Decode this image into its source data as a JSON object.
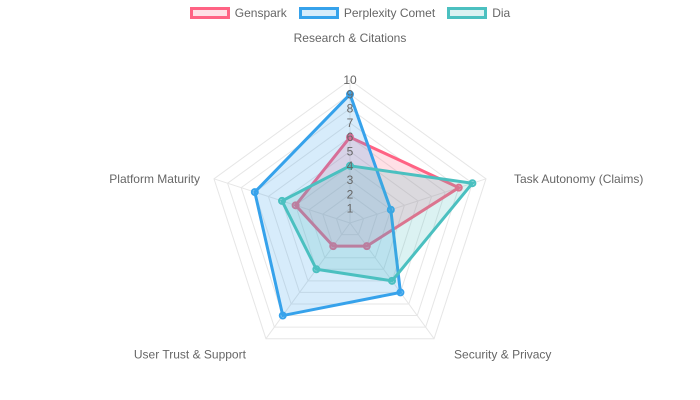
{
  "chart_data": {
    "type": "radar",
    "categories": [
      "Research & Citations",
      "Task Autonomy (Claims)",
      "Security & Privacy",
      "User Trust & Support",
      "Platform Maturity"
    ],
    "r_range": [
      0,
      10
    ],
    "ticks": [
      1,
      2,
      3,
      4,
      5,
      6,
      7,
      8,
      9,
      10
    ],
    "legend_position": "top",
    "series": [
      {
        "name": "Genspark",
        "values": [
          6,
          8,
          2,
          2,
          4
        ],
        "color": "#ff6384",
        "fill": "rgba(255,99,132,0.2)"
      },
      {
        "name": "Perplexity Comet",
        "values": [
          9,
          3,
          6,
          8,
          7
        ],
        "color": "#36a2eb",
        "fill": "rgba(54,162,235,0.2)"
      },
      {
        "name": "Dia",
        "values": [
          4,
          9,
          5,
          4,
          5
        ],
        "color": "#4bc0c0",
        "fill": "rgba(75,192,192,0.2)"
      }
    ]
  }
}
